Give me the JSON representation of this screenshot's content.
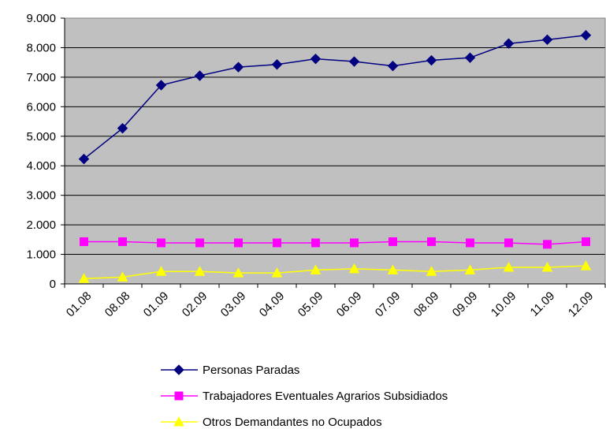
{
  "chart_data": {
    "type": "line",
    "categories": [
      "01.08",
      "08.08",
      "01.09",
      "02.09",
      "03.09",
      "04.09",
      "05.09",
      "06.09",
      "07.09",
      "08.09",
      "09.09",
      "10.09",
      "11.09",
      "12.09"
    ],
    "series": [
      {
        "name": "Personas Paradas",
        "color": "#000080",
        "marker": "diamond",
        "values": [
          4230,
          5270,
          6730,
          7050,
          7340,
          7430,
          7620,
          7530,
          7380,
          7570,
          7660,
          8140,
          8270,
          8420
        ]
      },
      {
        "name": "Trabajadores Eventuales Agrarios Subsidiados",
        "color": "#FF00FF",
        "marker": "square",
        "values": [
          1430,
          1430,
          1390,
          1390,
          1390,
          1390,
          1390,
          1390,
          1430,
          1430,
          1390,
          1390,
          1340,
          1430
        ]
      },
      {
        "name": "Otros Demandantes no Ocupados",
        "color": "#FFFF00",
        "marker": "triangle",
        "values": [
          180,
          230,
          420,
          420,
          370,
          370,
          470,
          510,
          470,
          420,
          470,
          560,
          560,
          610
        ]
      }
    ],
    "ylim": [
      0,
      9000
    ],
    "yticks": [
      0,
      1000,
      2000,
      3000,
      4000,
      5000,
      6000,
      7000,
      8000,
      9000
    ],
    "ytick_labels": [
      "0",
      "1.000",
      "2.000",
      "3.000",
      "4.000",
      "5.000",
      "6.000",
      "7.000",
      "8.000",
      "9.000"
    ],
    "grid": true,
    "plot_background": "#C0C0C0",
    "legend_position": "bottom"
  }
}
